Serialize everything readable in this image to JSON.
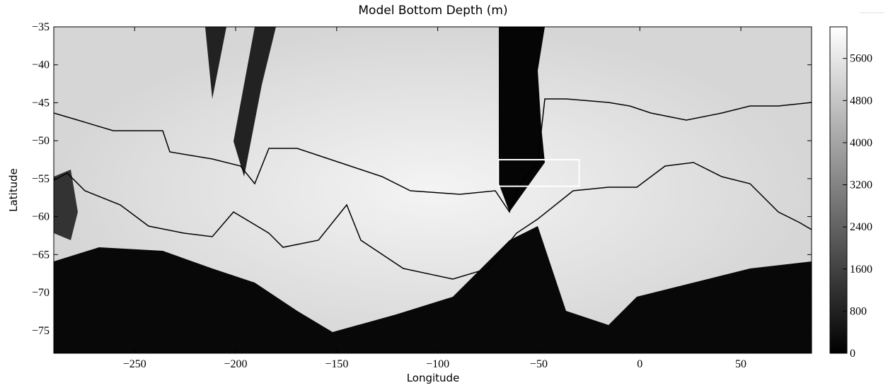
{
  "chart_data": {
    "type": "heatmap",
    "title": "Model Bottom Depth (m)",
    "x_label": "Longitude",
    "y_label": "Latitude",
    "xlim": [
      -290,
      85
    ],
    "ylim": [
      -78,
      -35
    ],
    "xticks": [
      {
        "value": -250,
        "label": "−250"
      },
      {
        "value": -200,
        "label": "−200"
      },
      {
        "value": -150,
        "label": "−150"
      },
      {
        "value": -100,
        "label": "−100"
      },
      {
        "value": -50,
        "label": "−50"
      },
      0,
      50
    ],
    "yticks": [
      {
        "value": -35,
        "label": "−35"
      },
      {
        "value": -40,
        "label": "−40"
      },
      {
        "value": -45,
        "label": "−45"
      },
      {
        "value": -50,
        "label": "−50"
      },
      {
        "value": -55,
        "label": "−55"
      },
      {
        "value": -60,
        "label": "−60"
      },
      {
        "value": -65,
        "label": "−65"
      },
      {
        "value": -70,
        "label": "−70"
      },
      {
        "value": -75,
        "label": "−75"
      }
    ],
    "colorbar_lim": [
      0,
      6200
    ],
    "colorbar_ticks": [
      0,
      800,
      1600,
      2400,
      3200,
      4000,
      4800,
      5600
    ],
    "colormap": [
      "#000000",
      "#ffffff"
    ],
    "highlight_box": {
      "xlim": [
        -70,
        -30
      ],
      "ylim": [
        -56,
        -52.5
      ],
      "color": "#ffffff"
    }
  }
}
